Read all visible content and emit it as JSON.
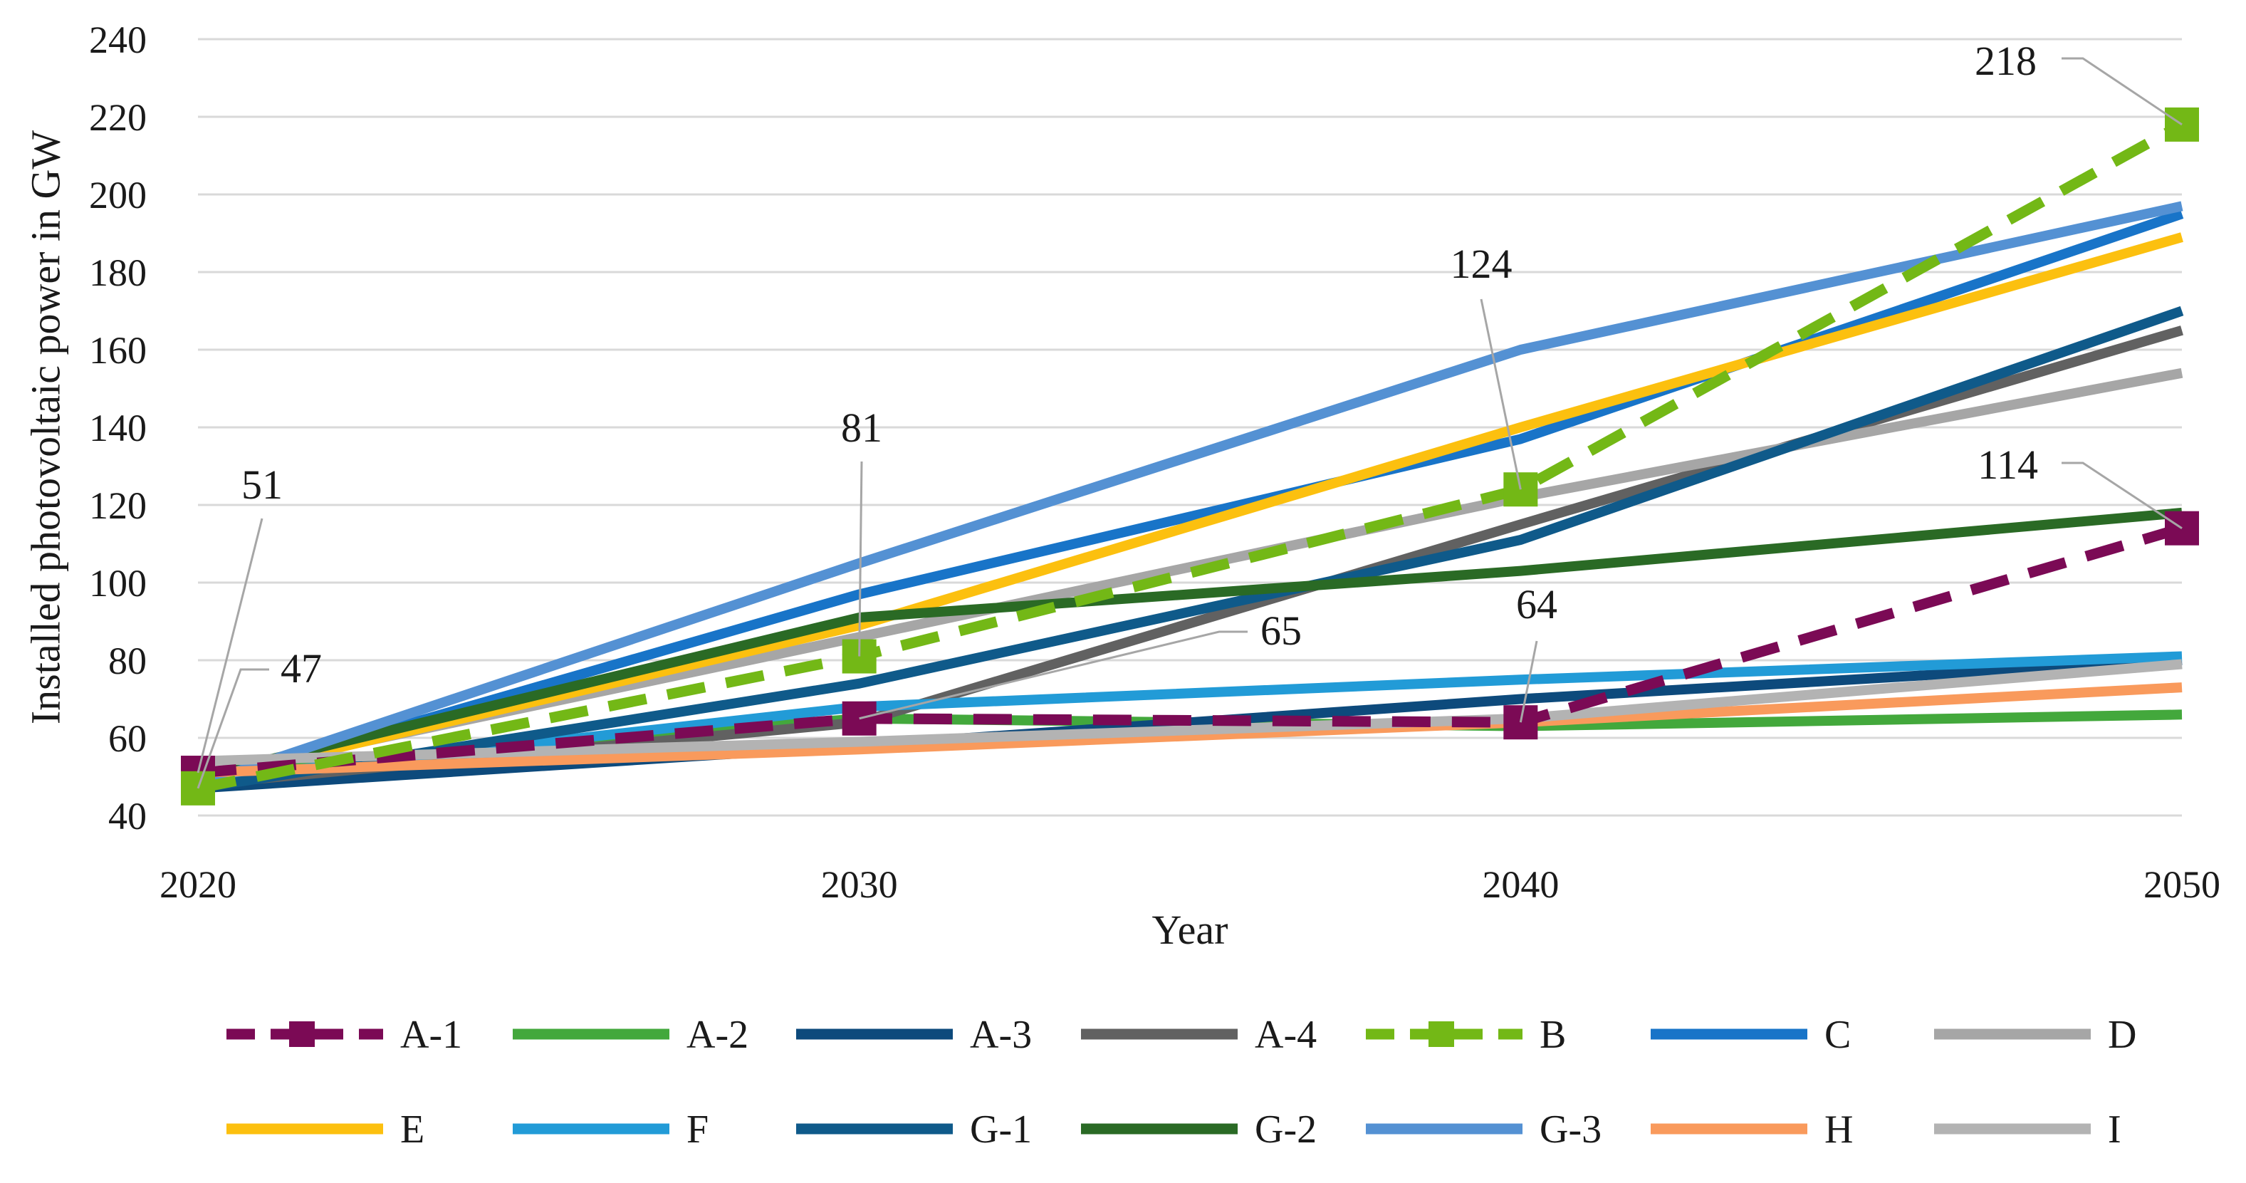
{
  "chart_data": {
    "type": "line",
    "title": "",
    "xlabel": "Year",
    "ylabel": "Installed photovoltaic power in GW",
    "x": [
      2020,
      2030,
      2040,
      2050
    ],
    "x_ticks": [
      "2020",
      "2030",
      "2040",
      "2050"
    ],
    "y_ticks": [
      "40",
      "60",
      "80",
      "100",
      "120",
      "140",
      "160",
      "180",
      "200",
      "220",
      "240"
    ],
    "ylim": [
      40,
      240
    ],
    "grid": "horizontal",
    "legend_position": "bottom",
    "series": [
      {
        "name": "A-1",
        "color": "#7B0A55",
        "style": "dashed-markers",
        "values": [
          51,
          65,
          64,
          114
        ]
      },
      {
        "name": "A-2",
        "color": "#43A83C",
        "style": "solid",
        "values": [
          51,
          65,
          63,
          66
        ]
      },
      {
        "name": "A-3",
        "color": "#0D4A7C",
        "style": "solid",
        "values": [
          47,
          58,
          70,
          80
        ]
      },
      {
        "name": "A-4",
        "color": "#616161",
        "style": "solid",
        "values": [
          48,
          64,
          115,
          165
        ]
      },
      {
        "name": "B",
        "color": "#73B816",
        "style": "dashed-markers",
        "values": [
          47,
          81,
          124,
          218
        ]
      },
      {
        "name": "C",
        "color": "#1874C8",
        "style": "solid",
        "values": [
          48,
          97,
          137,
          195
        ]
      },
      {
        "name": "D",
        "color": "#A6A6A6",
        "style": "solid",
        "values": [
          50,
          86,
          122,
          154
        ]
      },
      {
        "name": "E",
        "color": "#FCC00F",
        "style": "solid",
        "values": [
          49,
          89,
          140,
          189
        ]
      },
      {
        "name": "F",
        "color": "#229BD7",
        "style": "solid",
        "values": [
          49,
          68,
          75,
          81
        ]
      },
      {
        "name": "G-1",
        "color": "#0F5A8A",
        "style": "solid",
        "values": [
          47,
          74,
          111,
          170
        ]
      },
      {
        "name": "G-2",
        "color": "#2A6A25",
        "style": "solid",
        "values": [
          50,
          91,
          103,
          118
        ]
      },
      {
        "name": "G-3",
        "color": "#5491D3",
        "style": "solid",
        "values": [
          48,
          105,
          160,
          197
        ]
      },
      {
        "name": "H",
        "color": "#F99A5C",
        "style": "solid",
        "values": [
          51,
          57,
          64,
          73
        ]
      },
      {
        "name": "I",
        "color": "#B3B3B3",
        "style": "solid",
        "values": [
          54,
          59,
          65,
          79
        ]
      }
    ],
    "annotations": [
      {
        "text": "51",
        "x": 2020,
        "y": 51
      },
      {
        "text": "47",
        "x": 2020,
        "y": 47
      },
      {
        "text": "81",
        "x": 2030,
        "y": 81
      },
      {
        "text": "65",
        "x": 2030,
        "y": 65
      },
      {
        "text": "124",
        "x": 2040,
        "y": 124
      },
      {
        "text": "64",
        "x": 2040,
        "y": 64
      },
      {
        "text": "218",
        "x": 2050,
        "y": 218
      },
      {
        "text": "114",
        "x": 2050,
        "y": 114
      }
    ]
  }
}
